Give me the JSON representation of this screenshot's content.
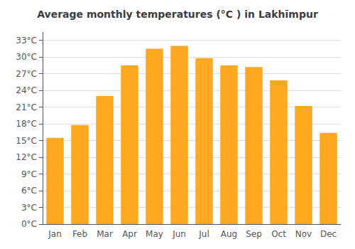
{
  "chart_data": {
    "type": "bar",
    "title": "Average monthly temperatures (°C ) in Lakhīmpur",
    "categories": [
      "Jan",
      "Feb",
      "Mar",
      "Apr",
      "May",
      "Jun",
      "Jul",
      "Aug",
      "Sep",
      "Oct",
      "Nov",
      "Dec"
    ],
    "values": [
      15.5,
      17.8,
      23.0,
      28.5,
      31.5,
      32.0,
      29.8,
      28.5,
      28.2,
      25.8,
      21.2,
      16.4
    ],
    "color": "#FFA820",
    "ylim": [
      0,
      34.5
    ],
    "yticks": [
      {
        "value": 0,
        "label": "0°C"
      },
      {
        "value": 3,
        "label": "3°C"
      },
      {
        "value": 6,
        "label": "6°C"
      },
      {
        "value": 9,
        "label": "9°C"
      },
      {
        "value": 12,
        "label": "12°C"
      },
      {
        "value": 15,
        "label": "15°C"
      },
      {
        "value": 18,
        "label": "18°C"
      },
      {
        "value": 21,
        "label": "21°C"
      },
      {
        "value": 24,
        "label": "24°C"
      },
      {
        "value": 27,
        "label": "27°C"
      },
      {
        "value": 30,
        "label": "30°C"
      },
      {
        "value": 33,
        "label": "33°C"
      }
    ],
    "grid": true
  }
}
